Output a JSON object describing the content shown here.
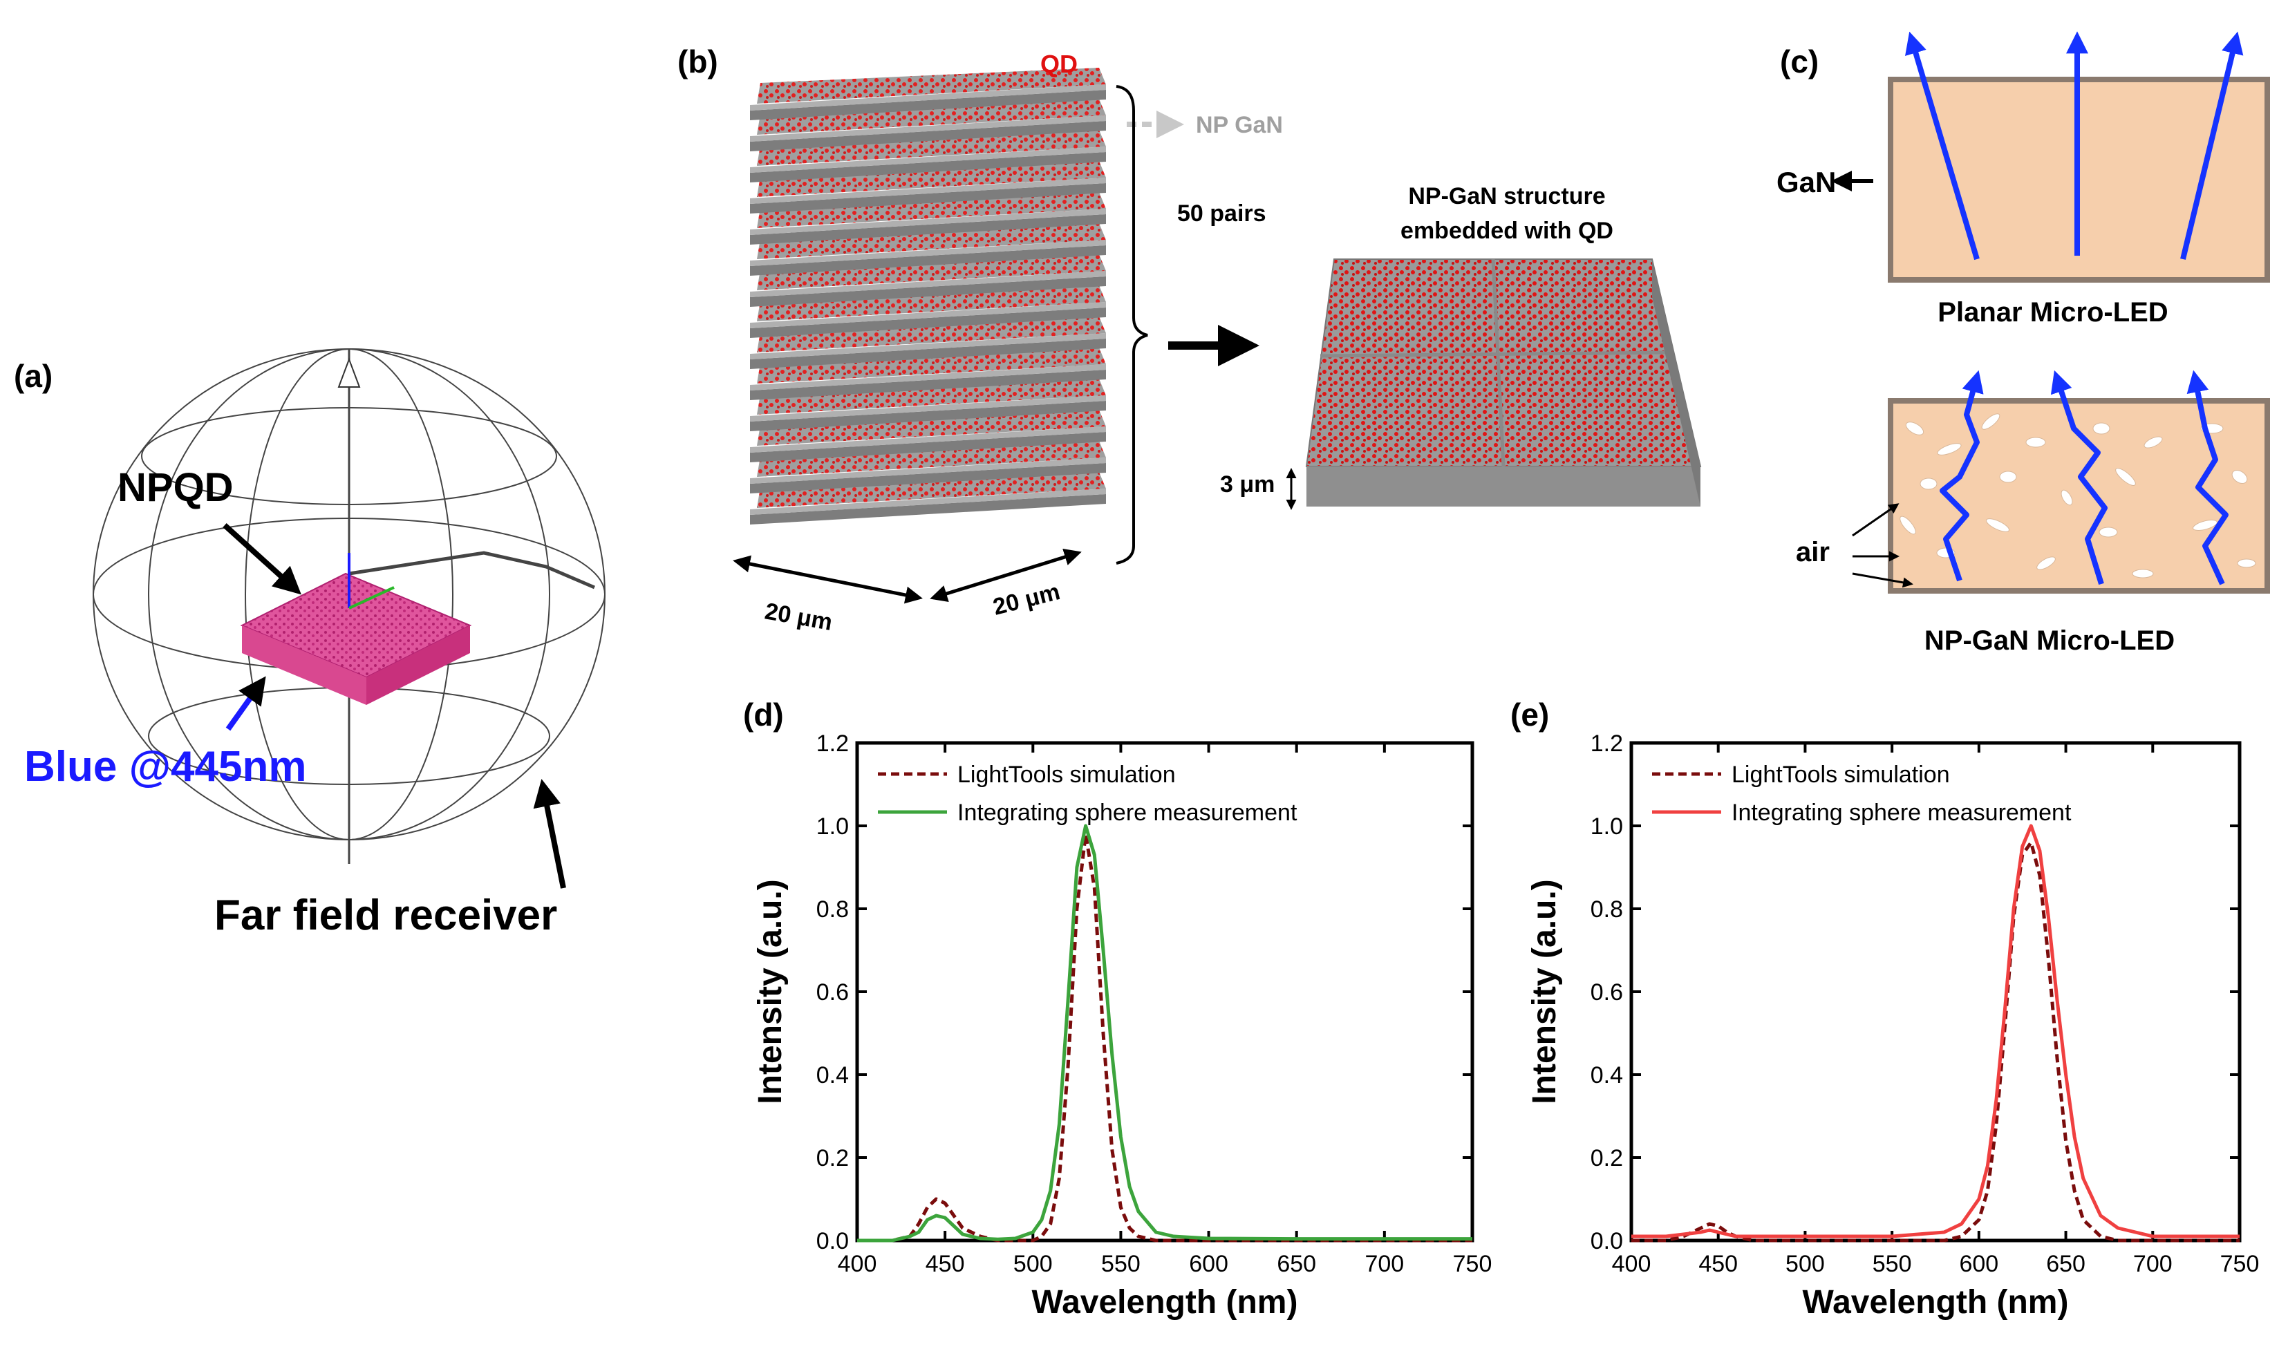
{
  "panel_labels": {
    "a": "(a)",
    "b": "(b)",
    "c": "(c)",
    "d": "(d)",
    "e": "(e)"
  },
  "panel_a": {
    "npqd_label": "NPQD",
    "blue_label": "Blue @445nm",
    "receiver_label": "Far field receiver",
    "colors": {
      "blue_label": "#1a1aff",
      "npqd_box": "#d6338a"
    }
  },
  "panel_b": {
    "qd_label": "QD",
    "np_gan_label": "NP GaN",
    "pairs_label": "50 pairs",
    "width_label_1": "20 μm",
    "width_label_2": "20 μm",
    "embedded_title_line1": "NP-GaN structure",
    "embedded_title_line2": "embedded with QD",
    "thickness_label": "3 μm",
    "colors": {
      "qd": "#e01010",
      "gan": "#8c8c8c"
    }
  },
  "panel_c": {
    "gan_label": "GaN",
    "planar_caption": "Planar Micro-LED",
    "air_label": "air",
    "np_caption": "NP-GaN Micro-LED",
    "colors": {
      "gan_fill": "#f6cfac",
      "ray": "#1533ff"
    }
  },
  "chart_data": [
    {
      "type": "line",
      "panel": "(d)",
      "xlabel": "Wavelength (nm)",
      "ylabel": "Intensity (a.u.)",
      "xlim": [
        400,
        750
      ],
      "ylim": [
        0,
        1.2
      ],
      "xticks": [
        "400",
        "450",
        "500",
        "550",
        "600",
        "650",
        "700",
        "750"
      ],
      "yticks": [
        "0.0",
        "0.2",
        "0.4",
        "0.6",
        "0.8",
        "1.0",
        "1.2"
      ],
      "legend_position": "top-left",
      "series": [
        {
          "name": "LightTools simulation",
          "style": "dashed",
          "color": "#7a0c0c",
          "x": [
            400,
            420,
            430,
            435,
            440,
            445,
            450,
            455,
            460,
            470,
            480,
            490,
            500,
            505,
            510,
            515,
            520,
            525,
            530,
            535,
            540,
            545,
            550,
            555,
            560,
            570,
            580,
            600,
            650,
            700,
            750
          ],
          "y": [
            0.0,
            0.0,
            0.01,
            0.04,
            0.08,
            0.1,
            0.09,
            0.06,
            0.03,
            0.01,
            0.0,
            0.0,
            0.0,
            0.01,
            0.04,
            0.15,
            0.42,
            0.8,
            0.98,
            0.85,
            0.5,
            0.22,
            0.08,
            0.03,
            0.01,
            0.0,
            0.0,
            0.0,
            0.0,
            0.0,
            0.0
          ]
        },
        {
          "name": "Integrating sphere measurement",
          "style": "solid",
          "color": "#3ca43c",
          "x": [
            400,
            420,
            430,
            435,
            440,
            445,
            450,
            455,
            460,
            470,
            480,
            490,
            500,
            505,
            510,
            515,
            520,
            525,
            530,
            535,
            540,
            545,
            550,
            555,
            560,
            570,
            580,
            600,
            650,
            700,
            750
          ],
          "y": [
            0.0,
            0.0,
            0.01,
            0.02,
            0.05,
            0.06,
            0.055,
            0.035,
            0.015,
            0.005,
            0.003,
            0.005,
            0.02,
            0.05,
            0.12,
            0.28,
            0.58,
            0.9,
            1.0,
            0.93,
            0.7,
            0.45,
            0.25,
            0.13,
            0.07,
            0.02,
            0.01,
            0.005,
            0.004,
            0.004,
            0.004
          ]
        }
      ]
    },
    {
      "type": "line",
      "panel": "(e)",
      "xlabel": "Wavelength (nm)",
      "ylabel": "Intensity (a.u.)",
      "xlim": [
        400,
        750
      ],
      "ylim": [
        0,
        1.2
      ],
      "xticks": [
        "400",
        "450",
        "500",
        "550",
        "600",
        "650",
        "700",
        "750"
      ],
      "yticks": [
        "0.0",
        "0.2",
        "0.4",
        "0.6",
        "0.8",
        "1.0",
        "1.2"
      ],
      "legend_position": "top-left",
      "series": [
        {
          "name": "LightTools simulation",
          "style": "dashed",
          "color": "#7a0c0c",
          "x": [
            400,
            420,
            430,
            440,
            445,
            450,
            455,
            460,
            470,
            500,
            550,
            580,
            590,
            600,
            605,
            610,
            615,
            620,
            625,
            630,
            635,
            640,
            645,
            650,
            655,
            660,
            670,
            680,
            700,
            750
          ],
          "y": [
            0.0,
            0.0,
            0.01,
            0.03,
            0.04,
            0.035,
            0.02,
            0.01,
            0.0,
            0.0,
            0.0,
            0.0,
            0.01,
            0.05,
            0.12,
            0.28,
            0.52,
            0.78,
            0.93,
            0.96,
            0.88,
            0.68,
            0.44,
            0.24,
            0.12,
            0.05,
            0.01,
            0.0,
            0.0,
            0.0
          ]
        },
        {
          "name": "Integrating sphere measurement",
          "style": "solid",
          "color": "#f04040",
          "x": [
            400,
            420,
            430,
            440,
            445,
            450,
            455,
            460,
            470,
            500,
            550,
            580,
            590,
            600,
            605,
            610,
            615,
            620,
            625,
            630,
            635,
            640,
            645,
            650,
            655,
            660,
            670,
            680,
            700,
            750
          ],
          "y": [
            0.01,
            0.01,
            0.015,
            0.02,
            0.025,
            0.02,
            0.015,
            0.01,
            0.01,
            0.01,
            0.01,
            0.02,
            0.04,
            0.1,
            0.18,
            0.34,
            0.56,
            0.8,
            0.95,
            1.0,
            0.94,
            0.78,
            0.58,
            0.4,
            0.25,
            0.15,
            0.06,
            0.03,
            0.01,
            0.01
          ]
        }
      ]
    }
  ]
}
